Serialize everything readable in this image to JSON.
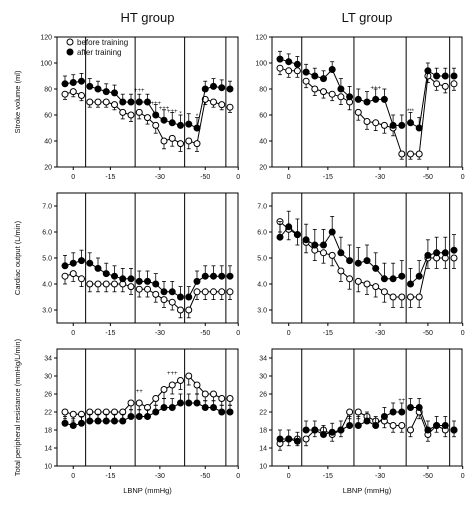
{
  "legend": {
    "before": "before training",
    "after": "after training"
  },
  "chart_data": [
    {
      "type": "line",
      "row": 0,
      "col": 0,
      "group": "HT group",
      "ylabel": "Stroke volume (ml)",
      "ylim": [
        20,
        120
      ],
      "yticks": [
        "20",
        "40",
        "60",
        "80",
        "100",
        "120"
      ],
      "xlabel": "",
      "xticks": [
        "0",
        "-15",
        "-30",
        "-50",
        "0"
      ],
      "phases": [
        3,
        6,
        6,
        5,
        3
      ],
      "series": [
        {
          "name": "before training",
          "marker": "open",
          "values": [
            76,
            78,
            75,
            70,
            70,
            70,
            68,
            62,
            60,
            62,
            58,
            52,
            40,
            42,
            38,
            40,
            38,
            72,
            70,
            68,
            66
          ],
          "err": [
            4,
            4,
            4,
            4,
            4,
            4,
            4,
            5,
            5,
            5,
            5,
            6,
            6,
            6,
            6,
            6,
            6,
            4,
            4,
            4,
            4
          ]
        },
        {
          "name": "after training",
          "marker": "filled",
          "values": [
            84,
            85,
            86,
            82,
            80,
            78,
            77,
            70,
            70,
            70,
            70,
            60,
            56,
            54,
            52,
            53,
            50,
            80,
            82,
            81,
            80
          ],
          "err": [
            6,
            6,
            6,
            6,
            6,
            6,
            6,
            6,
            6,
            6,
            6,
            8,
            8,
            8,
            8,
            8,
            8,
            6,
            6,
            6,
            6
          ]
        }
      ],
      "marks": [
        {
          "i": 9,
          "t": "+++"
        },
        {
          "i": 11,
          "t": "+++"
        },
        {
          "i": 12,
          "t": "+++"
        },
        {
          "i": 13,
          "t": "+++"
        },
        {
          "i": 14,
          "t": "*"
        },
        {
          "i": 16,
          "t": "*"
        }
      ]
    },
    {
      "type": "line",
      "row": 0,
      "col": 1,
      "group": "LT group",
      "ylabel": "",
      "ylim": [
        20,
        120
      ],
      "yticks": [
        "20",
        "40",
        "60",
        "80",
        "100",
        "120"
      ],
      "xlabel": "",
      "xticks": [
        "0",
        "-15",
        "-30",
        "-50",
        "0"
      ],
      "phases": [
        3,
        6,
        6,
        5,
        3
      ],
      "series": [
        {
          "name": "before training",
          "marker": "open",
          "values": [
            96,
            94,
            94,
            86,
            80,
            78,
            76,
            74,
            70,
            62,
            55,
            54,
            52,
            50,
            30,
            30,
            30,
            90,
            84,
            82,
            84
          ],
          "err": [
            5,
            5,
            5,
            5,
            5,
            5,
            5,
            6,
            6,
            6,
            6,
            6,
            6,
            6,
            4,
            4,
            4,
            5,
            5,
            5,
            5
          ]
        },
        {
          "name": "after training",
          "marker": "filled",
          "values": [
            103,
            101,
            99,
            93,
            90,
            88,
            95,
            80,
            74,
            72,
            70,
            72,
            72,
            52,
            52,
            54,
            50,
            94,
            90,
            90,
            90
          ],
          "err": [
            6,
            6,
            6,
            6,
            6,
            6,
            6,
            8,
            8,
            8,
            8,
            8,
            8,
            8,
            8,
            8,
            8,
            6,
            6,
            6,
            6
          ]
        }
      ],
      "marks": [
        {
          "i": 15,
          "t": "***"
        },
        {
          "i": 11,
          "t": "+++"
        }
      ]
    },
    {
      "type": "line",
      "row": 1,
      "col": 0,
      "group": "",
      "ylabel": "Cardiac output (L/min)",
      "ylim": [
        2.5,
        7.5
      ],
      "yticks": [
        "3.0",
        "4.0",
        "5.0",
        "6.0",
        "7.0"
      ],
      "xlabel": "",
      "xticks": [
        "0",
        "-15",
        "-30",
        "-50",
        "0"
      ],
      "phases": [
        3,
        6,
        6,
        5,
        3
      ],
      "series": [
        {
          "name": "before training",
          "marker": "open",
          "values": [
            4.3,
            4.4,
            4.2,
            4.0,
            4.0,
            4.0,
            4.0,
            4.0,
            3.9,
            3.8,
            3.8,
            3.6,
            3.4,
            3.3,
            3.0,
            3.0,
            3.7,
            3.7,
            3.7,
            3.7,
            3.7
          ],
          "err": [
            0.3,
            0.3,
            0.3,
            0.3,
            0.3,
            0.3,
            0.3,
            0.3,
            0.3,
            0.3,
            0.3,
            0.3,
            0.3,
            0.3,
            0.3,
            0.3,
            0.3,
            0.3,
            0.3,
            0.3,
            0.3
          ]
        },
        {
          "name": "after training",
          "marker": "filled",
          "values": [
            4.7,
            4.8,
            4.9,
            4.8,
            4.6,
            4.4,
            4.3,
            4.2,
            4.2,
            4.1,
            4.1,
            4.0,
            3.7,
            3.7,
            3.5,
            3.5,
            4.1,
            4.3,
            4.3,
            4.3,
            4.3
          ],
          "err": [
            0.4,
            0.4,
            0.4,
            0.4,
            0.4,
            0.4,
            0.4,
            0.4,
            0.4,
            0.4,
            0.4,
            0.4,
            0.4,
            0.4,
            0.4,
            0.4,
            0.4,
            0.4,
            0.4,
            0.4,
            0.4
          ]
        }
      ],
      "marks": []
    },
    {
      "type": "line",
      "row": 1,
      "col": 1,
      "group": "",
      "ylabel": "",
      "ylim": [
        2.5,
        7.5
      ],
      "yticks": [
        "3.0",
        "4.0",
        "5.0",
        "6.0",
        "7.0"
      ],
      "xlabel": "",
      "xticks": [
        "0",
        "-15",
        "-30",
        "-50",
        "0"
      ],
      "phases": [
        3,
        6,
        6,
        5,
        3
      ],
      "series": [
        {
          "name": "before training",
          "marker": "open",
          "values": [
            6.4,
            6.1,
            5.9,
            5.6,
            5.3,
            5.2,
            5.1,
            4.5,
            4.2,
            4.1,
            4.0,
            3.9,
            3.7,
            3.5,
            3.5,
            3.5,
            3.5,
            5.0,
            5.0,
            5.0,
            5.0
          ],
          "err": [
            0.4,
            0.4,
            0.4,
            0.4,
            0.4,
            0.4,
            0.4,
            0.4,
            0.4,
            0.4,
            0.4,
            0.4,
            0.4,
            0.4,
            0.4,
            0.4,
            0.4,
            0.4,
            0.4,
            0.4,
            0.4
          ]
        },
        {
          "name": "after training",
          "marker": "filled",
          "values": [
            5.8,
            6.2,
            5.9,
            5.7,
            5.5,
            5.5,
            6.0,
            5.2,
            4.9,
            4.8,
            4.9,
            4.6,
            4.2,
            4.2,
            4.3,
            4.0,
            4.3,
            5.1,
            5.2,
            5.2,
            5.3
          ],
          "err": [
            0.6,
            0.6,
            0.6,
            0.6,
            0.6,
            0.6,
            0.6,
            0.6,
            0.6,
            0.6,
            0.6,
            0.6,
            0.6,
            0.6,
            0.6,
            0.6,
            0.6,
            0.6,
            0.6,
            0.6,
            0.6
          ]
        }
      ],
      "marks": []
    },
    {
      "type": "line",
      "row": 2,
      "col": 0,
      "group": "",
      "ylabel": "Total peripheral resistance (mmHg/L/min)",
      "ylim": [
        10,
        36
      ],
      "yticks": [
        "10",
        "14",
        "18",
        "22",
        "26",
        "30",
        "34"
      ],
      "xlabel": "LBNP (mmHg)",
      "xticks": [
        "0",
        "-15",
        "-30",
        "-50",
        "0"
      ],
      "phases": [
        3,
        6,
        6,
        5,
        3
      ],
      "series": [
        {
          "name": "before training",
          "marker": "open",
          "values": [
            22,
            21.5,
            21.5,
            22,
            22,
            22,
            22,
            22,
            24,
            24,
            23,
            25,
            27,
            28,
            29,
            30,
            28,
            26,
            26,
            25,
            25
          ],
          "err": [
            1.5,
            1.5,
            1.5,
            1.5,
            1.5,
            1.5,
            1.5,
            1.5,
            1.5,
            1.5,
            1.5,
            1.5,
            2,
            2,
            2,
            2,
            2,
            1.5,
            1.5,
            1.5,
            1.5
          ]
        },
        {
          "name": "after training",
          "marker": "filled",
          "values": [
            19.5,
            19,
            19.5,
            20,
            20,
            20,
            20,
            20,
            21,
            21,
            21,
            22,
            23,
            23,
            24,
            24,
            24,
            23,
            23,
            22,
            22
          ],
          "err": [
            1.5,
            1.5,
            1.5,
            1.5,
            1.5,
            1.5,
            1.5,
            1.5,
            1.5,
            1.5,
            1.5,
            1.5,
            2,
            2,
            2,
            2,
            2,
            1.5,
            1.5,
            1.5,
            1.5
          ]
        }
      ],
      "marks": [
        {
          "i": 13,
          "t": "+++"
        },
        {
          "i": 9,
          "t": "++"
        }
      ]
    },
    {
      "type": "line",
      "row": 2,
      "col": 1,
      "group": "",
      "ylabel": "",
      "ylim": [
        10,
        36
      ],
      "yticks": [
        "10",
        "14",
        "18",
        "22",
        "26",
        "30",
        "34"
      ],
      "xlabel": "LBNP (mmHg)",
      "xticks": [
        "0",
        "-15",
        "-30",
        "-50",
        "0"
      ],
      "phases": [
        3,
        6,
        6,
        5,
        3
      ],
      "series": [
        {
          "name": "before training",
          "marker": "open",
          "values": [
            15,
            16,
            16,
            16,
            18,
            18,
            17,
            18,
            22,
            22,
            21,
            20,
            20,
            19,
            19,
            18,
            22,
            17,
            19,
            18,
            18
          ],
          "err": [
            1.5,
            1.5,
            1.5,
            1.5,
            1.5,
            1.5,
            1.5,
            1.5,
            1.5,
            1.5,
            1.5,
            1.5,
            1.5,
            1.5,
            1.5,
            1.5,
            1.5,
            1.5,
            1.5,
            1.5,
            1.5
          ]
        },
        {
          "name": "after training",
          "marker": "filled",
          "values": [
            16,
            16,
            15.5,
            18,
            18,
            17,
            17.5,
            18,
            19,
            19,
            20,
            19,
            21,
            22,
            22,
            23,
            23,
            18,
            19,
            19,
            18
          ],
          "err": [
            2,
            2,
            2,
            2,
            2,
            2,
            2,
            2,
            2,
            2,
            2,
            2,
            2,
            2,
            2,
            2,
            2,
            2,
            2,
            2,
            2
          ]
        }
      ],
      "marks": [
        {
          "i": 14,
          "t": "++"
        }
      ]
    }
  ]
}
